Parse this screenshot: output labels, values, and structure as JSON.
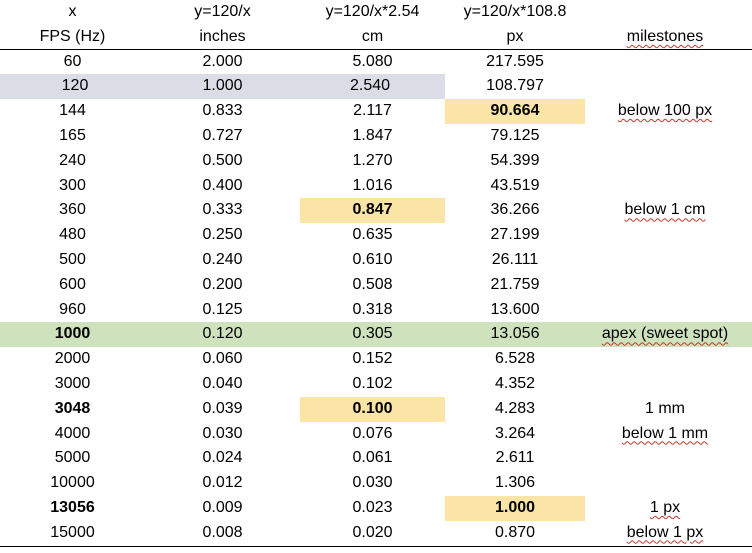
{
  "header_formulas": [
    "x",
    "y=120/x",
    "y=120/x*2.54",
    "y=120/x*108.8",
    ""
  ],
  "header_units": [
    "FPS (Hz)",
    "inches",
    "cm",
    "px",
    "milestones"
  ],
  "rows": [
    {
      "fps": "60",
      "inches": "2.000",
      "cm": "5.080",
      "px": "217.595",
      "milestone": ""
    },
    {
      "fps": "120",
      "inches": "1.000",
      "cm": "2.540",
      "px": "108.797",
      "milestone": ""
    },
    {
      "fps": "144",
      "inches": "0.833",
      "cm": "2.117",
      "px": "90.664",
      "milestone": "below 100 px"
    },
    {
      "fps": "165",
      "inches": "0.727",
      "cm": "1.847",
      "px": "79.125",
      "milestone": ""
    },
    {
      "fps": "240",
      "inches": "0.500",
      "cm": "1.270",
      "px": "54.399",
      "milestone": ""
    },
    {
      "fps": "300",
      "inches": "0.400",
      "cm": "1.016",
      "px": "43.519",
      "milestone": ""
    },
    {
      "fps": "360",
      "inches": "0.333",
      "cm": "0.847",
      "px": "36.266",
      "milestone": "below 1 cm"
    },
    {
      "fps": "480",
      "inches": "0.250",
      "cm": "0.635",
      "px": "27.199",
      "milestone": ""
    },
    {
      "fps": "500",
      "inches": "0.240",
      "cm": "0.610",
      "px": "26.111",
      "milestone": ""
    },
    {
      "fps": "600",
      "inches": "0.200",
      "cm": "0.508",
      "px": "21.759",
      "milestone": ""
    },
    {
      "fps": "960",
      "inches": "0.125",
      "cm": "0.318",
      "px": "13.600",
      "milestone": ""
    },
    {
      "fps": "1000",
      "inches": "0.120",
      "cm": "0.305",
      "px": "13.056",
      "milestone": "apex (sweet spot)"
    },
    {
      "fps": "2000",
      "inches": "0.060",
      "cm": "0.152",
      "px": "6.528",
      "milestone": ""
    },
    {
      "fps": "3000",
      "inches": "0.040",
      "cm": "0.102",
      "px": "4.352",
      "milestone": ""
    },
    {
      "fps": "3048",
      "inches": "0.039",
      "cm": "0.100",
      "px": "4.283",
      "milestone": "1 mm"
    },
    {
      "fps": "4000",
      "inches": "0.030",
      "cm": "0.076",
      "px": "3.264",
      "milestone": "below 1 mm"
    },
    {
      "fps": "5000",
      "inches": "0.024",
      "cm": "0.061",
      "px": "2.611",
      "milestone": ""
    },
    {
      "fps": "10000",
      "inches": "0.012",
      "cm": "0.030",
      "px": "1.306",
      "milestone": ""
    },
    {
      "fps": "13056",
      "inches": "0.009",
      "cm": "0.023",
      "px": "1.000",
      "milestone": "1 px"
    },
    {
      "fps": "15000",
      "inches": "0.008",
      "cm": "0.020",
      "px": "0.870",
      "milestone": "below 1 px"
    }
  ],
  "highlight_colors": {
    "yellow": "#fbe5a6",
    "gray": "#dbdde6",
    "green": "#cde2bd"
  }
}
